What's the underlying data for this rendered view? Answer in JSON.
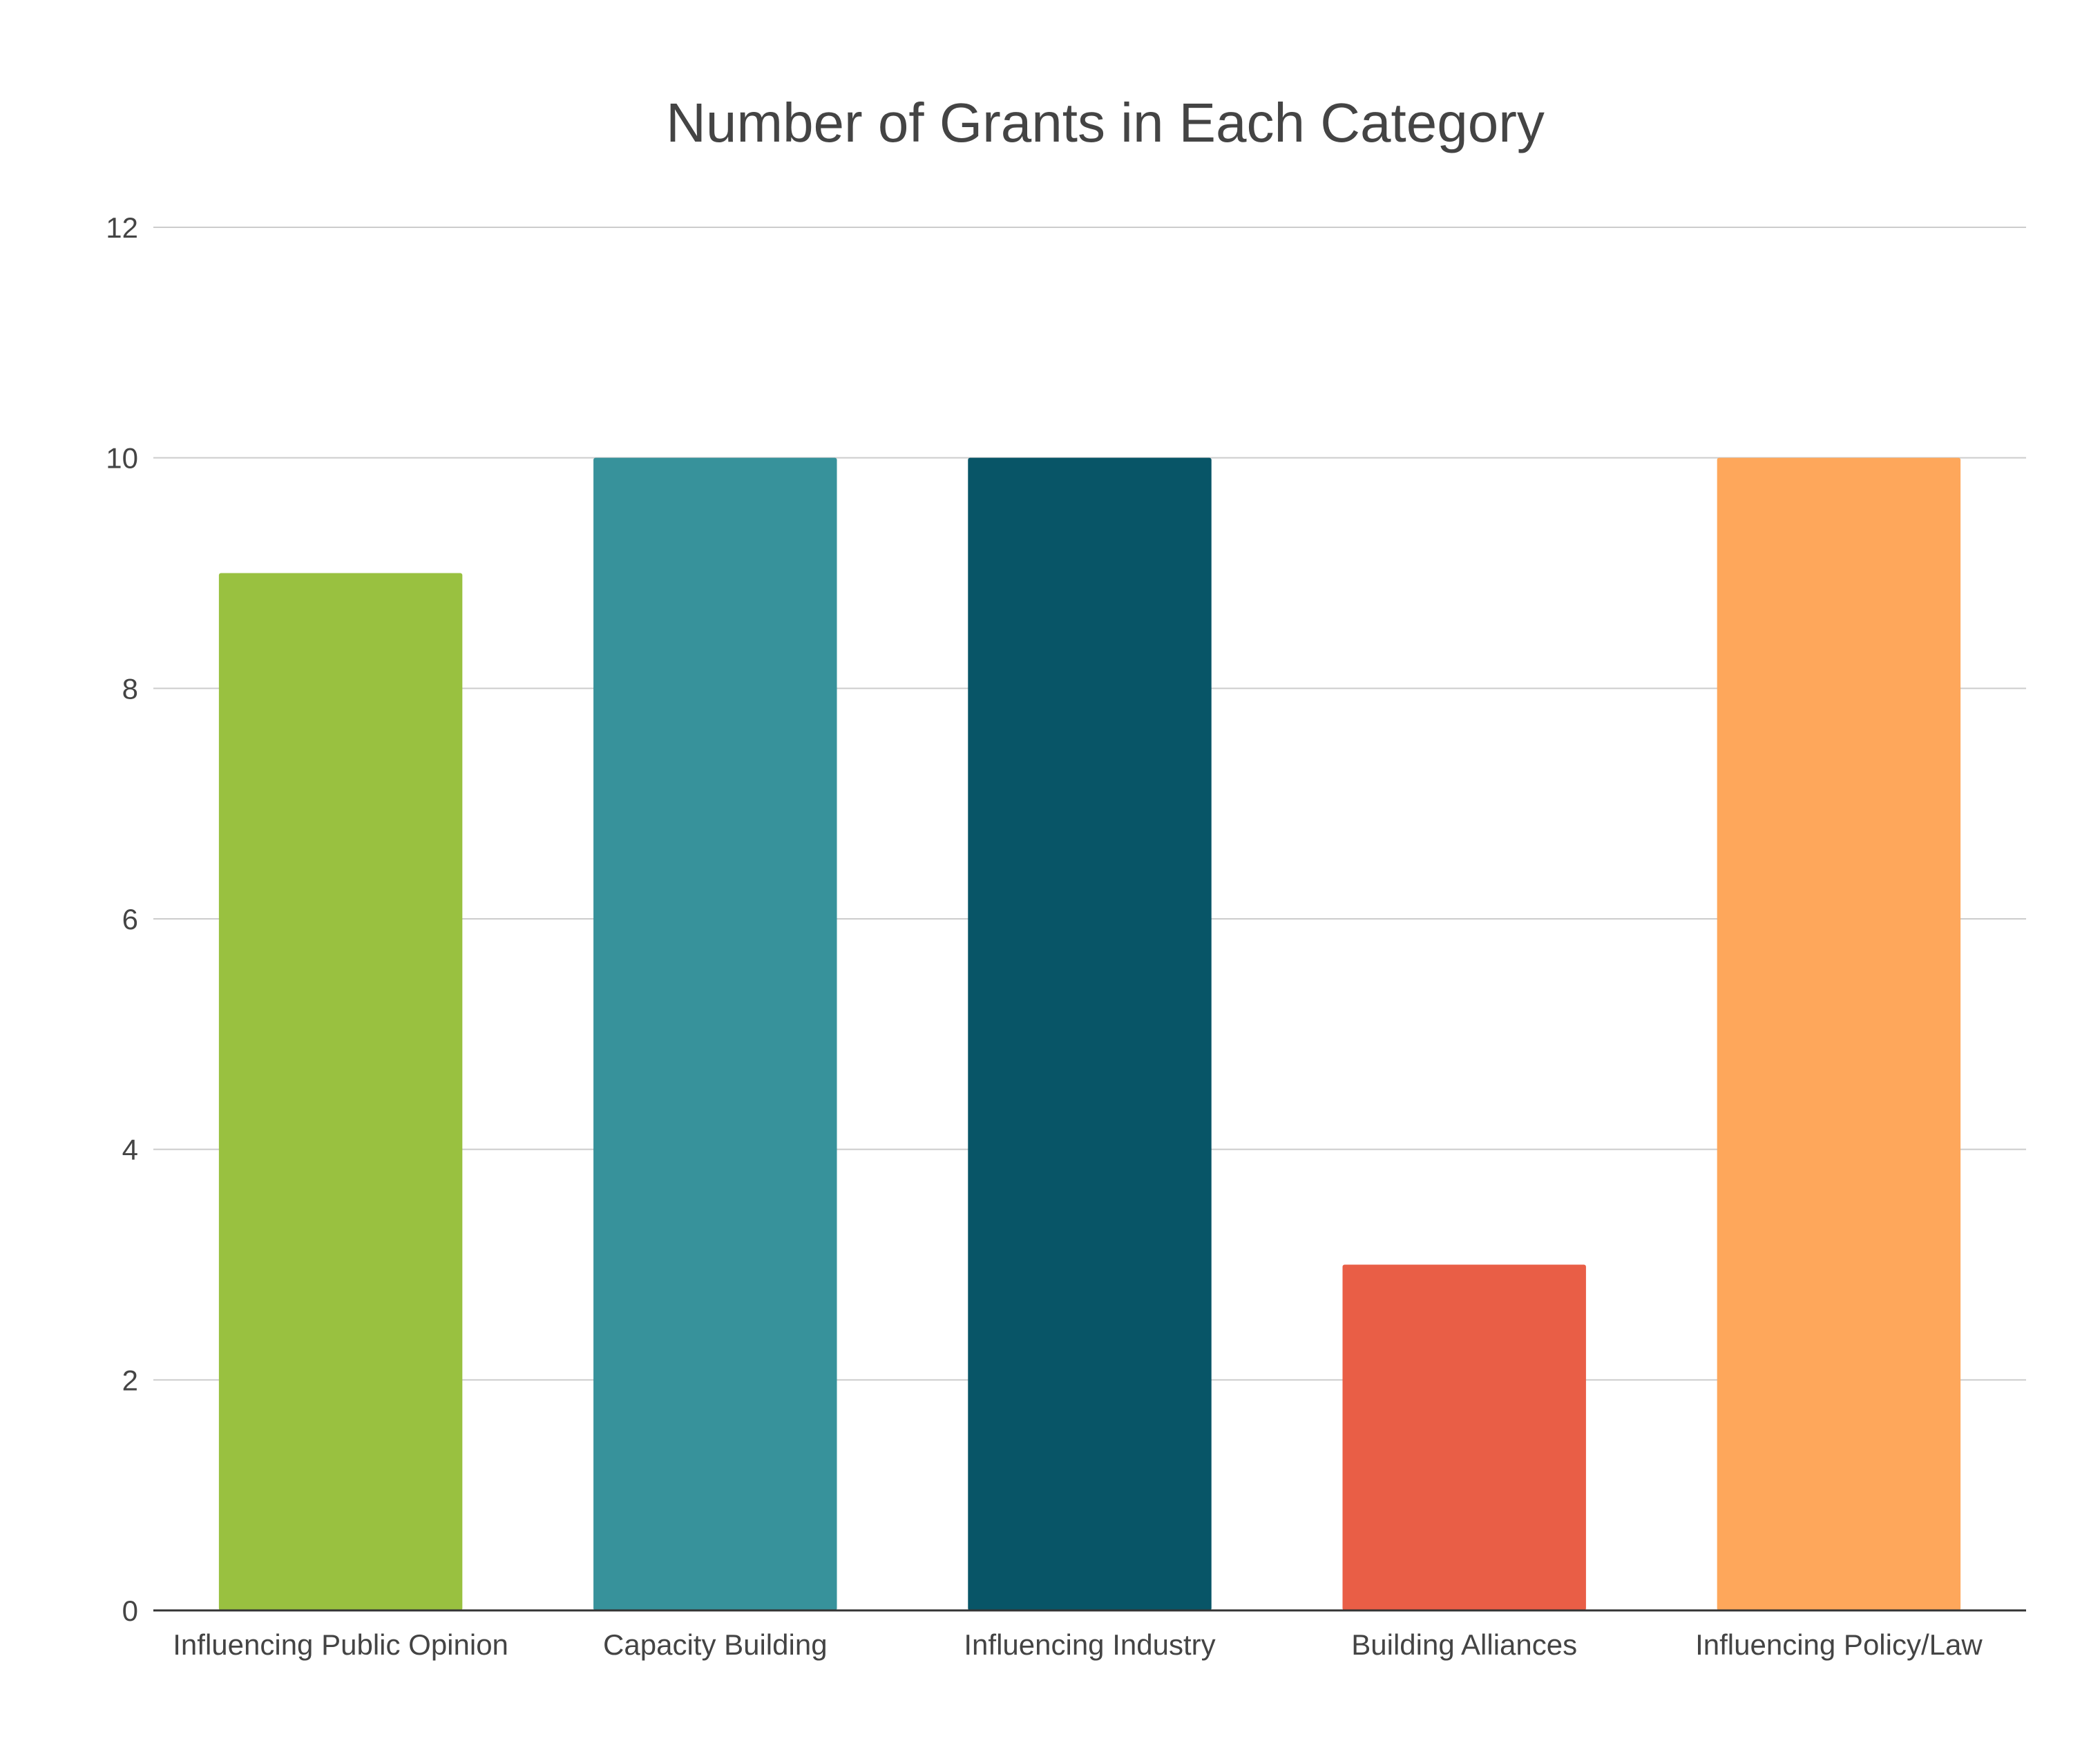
{
  "chart_data": {
    "type": "bar",
    "title": "Number of Grants in Each Category",
    "xlabel": "",
    "ylabel": "",
    "categories": [
      "Influencing Public Opinion",
      "Capacity Building",
      "Influencing Industry",
      "Building Alliances",
      "Influencing Policy/Law"
    ],
    "values": [
      9,
      10,
      10,
      3,
      10
    ],
    "colors": [
      "#99c140",
      "#37929b",
      "#085567",
      "#e95e46",
      "#fea75b"
    ],
    "ylim": [
      0,
      12
    ],
    "yticks": [
      0,
      2,
      4,
      6,
      8,
      10,
      12
    ],
    "grid": true,
    "legend": "none"
  }
}
